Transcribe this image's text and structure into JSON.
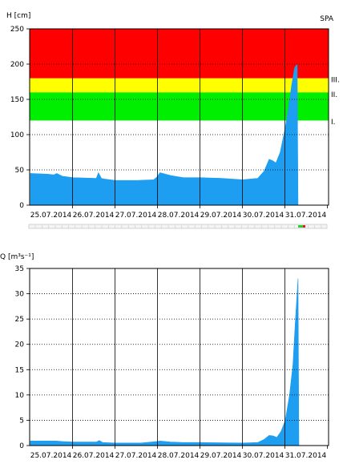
{
  "station": "SPA",
  "chart_data": [
    {
      "type": "area",
      "ylabel": "H [cm]",
      "ylim": [
        0,
        250
      ],
      "yticks": [
        0,
        50,
        100,
        150,
        200,
        250
      ],
      "grid": true,
      "x_categories": [
        "25.07.2014",
        "26.07.2014",
        "27.07.2014",
        "28.07.2014",
        "29.07.2014",
        "30.07.2014",
        "31.07.2014"
      ],
      "bands": [
        {
          "label": "I.",
          "from": 120,
          "to": 160,
          "color": "#00ee00"
        },
        {
          "label": "II.",
          "from": 160,
          "to": 180,
          "color": "#ffff00"
        },
        {
          "label": "III.",
          "from": 180,
          "to": 250,
          "color": "#ff0000"
        }
      ],
      "band_labels": [
        {
          "label": "III.",
          "value": 178
        },
        {
          "label": "II.",
          "value": 157
        },
        {
          "label": "I.",
          "value": 118
        }
      ],
      "series": [
        {
          "color": "#1e9ef0",
          "x": [
            0.0,
            0.4,
            0.55,
            0.62,
            0.75,
            1.0,
            1.55,
            1.6,
            1.67,
            1.75,
            2.0,
            2.5,
            2.9,
            2.98,
            3.05,
            3.3,
            3.6,
            4.0,
            4.5,
            5.0,
            5.35,
            5.5,
            5.62,
            5.7,
            5.78,
            5.88,
            6.0,
            6.08,
            6.15,
            6.22,
            6.28,
            6.3
          ],
          "y": [
            45,
            44,
            43,
            45,
            41,
            39,
            38,
            46,
            38,
            37,
            35,
            35,
            36,
            40,
            46,
            42,
            39,
            39,
            38,
            36,
            38,
            48,
            65,
            63,
            60,
            75,
            110,
            140,
            170,
            195,
            200,
            0
          ]
        }
      ]
    },
    {
      "type": "area",
      "ylabel": "Q [m³s⁻¹]",
      "ylim": [
        0,
        35
      ],
      "yticks": [
        0,
        5,
        10,
        15,
        20,
        25,
        30,
        35
      ],
      "grid": true,
      "x_categories": [
        "25.07.2014",
        "26.07.2014",
        "27.07.2014",
        "28.07.2014",
        "29.07.2014",
        "30.07.2014",
        "31.07.2014"
      ],
      "series": [
        {
          "color": "#1e9ef0",
          "x": [
            0.0,
            0.6,
            0.75,
            1.0,
            1.55,
            1.62,
            1.7,
            2.0,
            2.6,
            2.98,
            3.05,
            3.3,
            3.6,
            4.0,
            5.0,
            5.35,
            5.5,
            5.62,
            5.72,
            5.8,
            5.9,
            6.0,
            6.1,
            6.18,
            6.24,
            6.3,
            6.32
          ],
          "y": [
            0.9,
            0.9,
            0.8,
            0.7,
            0.7,
            1.0,
            0.6,
            0.5,
            0.5,
            0.8,
            0.9,
            0.7,
            0.6,
            0.6,
            0.5,
            0.6,
            1.2,
            2.0,
            1.9,
            1.6,
            2.8,
            5.0,
            10.0,
            16.0,
            25.0,
            33.0,
            0
          ]
        }
      ]
    }
  ]
}
